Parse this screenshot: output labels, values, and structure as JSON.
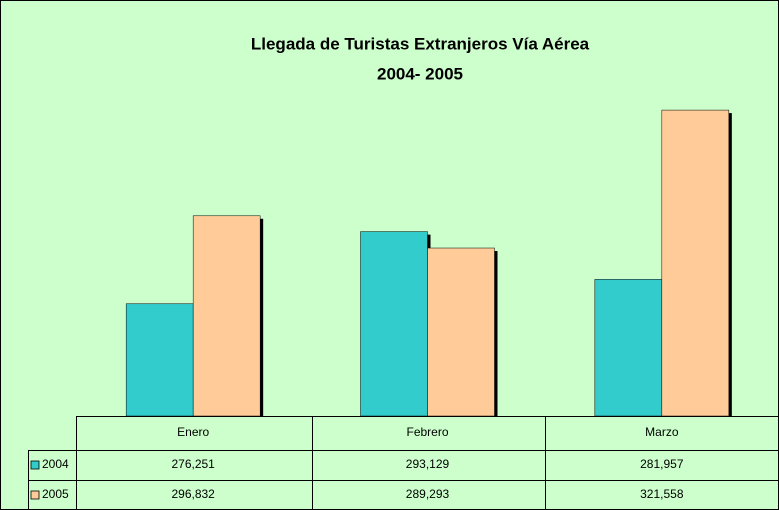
{
  "chart_data": {
    "type": "bar",
    "title": "Llegada de Turistas Extranjeros Vía Aérea",
    "subtitle": "2004- 2005",
    "categories": [
      "Enero",
      "Febrero",
      "Marzo"
    ],
    "series": [
      {
        "name": "2004",
        "color": "#33cccc",
        "values": [
          276251,
          293129,
          281957
        ],
        "value_labels": [
          "276,251",
          "293,129",
          "281,957"
        ]
      },
      {
        "name": "2005",
        "color": "#ffcc99",
        "values": [
          296832,
          289293,
          321558
        ],
        "value_labels": [
          "296,832",
          "289,293",
          "321,558"
        ]
      }
    ],
    "ylim": [
      250000,
      330000
    ]
  }
}
